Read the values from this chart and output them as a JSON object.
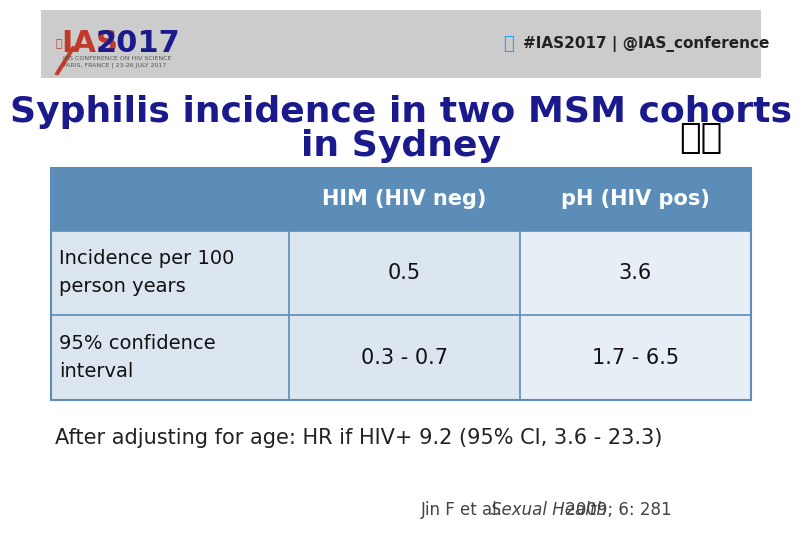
{
  "title_line1": "Syphilis incidence in two MSM cohorts",
  "title_line2": "in Sydney",
  "title_fontsize": 26,
  "title_color": "#1a1a8c",
  "header_bg_color": "#5b8db8",
  "header_text_color": "#ffffff",
  "row1_bg_color": "#dce6f1",
  "row2_bg_color": "#e8eef5",
  "col_labels": [
    "HIM (HIV neg)",
    "pH (HIV pos)"
  ],
  "row_labels": [
    "Incidence per 100\nperson years",
    "95% confidence\ninterval"
  ],
  "row1_values": [
    "0.5",
    "3.6"
  ],
  "row2_values": [
    "0.3 - 0.7",
    "1.7 - 6.5"
  ],
  "footer_text": "After adjusting for age: HR if HIV+ 9.2 (95% CI, 3.6 - 23.3)",
  "footer_fontsize": 15,
  "footer_color": "#222222",
  "citation_regular": "Jin F et al. ",
  "citation_italic": "Sexual Health",
  "citation_end": " 2009; 6: 281",
  "citation_fontsize": 12,
  "citation_color": "#444444",
  "twitter_text": "#IAS2017 | @IAS_conference",
  "twitter_color": "#1da1f2",
  "slide_bg_color": "#ffffff",
  "top_bar_color": "#cccccc",
  "border_color": "#5b8db8",
  "table_text_fontsize": 15,
  "row_label_fontsize": 14,
  "header_fontsize": 15
}
